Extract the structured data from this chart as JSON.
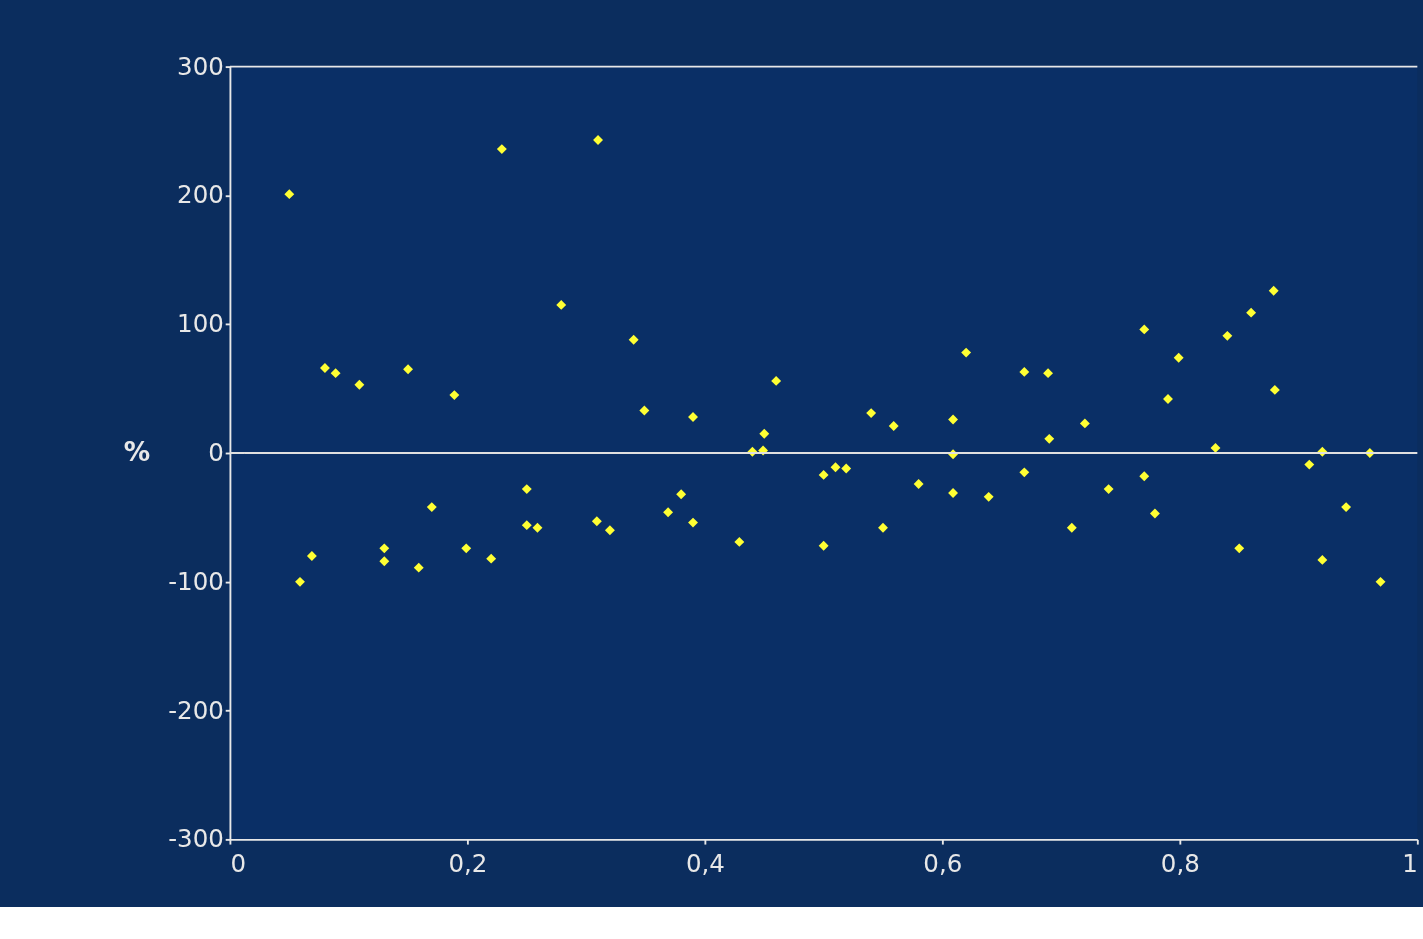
{
  "chart_data": {
    "type": "scatter",
    "ylabel": "%",
    "marker": "diamond",
    "legend": false,
    "grid": false,
    "xlim": [
      0,
      1
    ],
    "ylim": [
      -300,
      300
    ],
    "xticks": [
      0,
      {
        "value": 0.2,
        "label": "0,2"
      },
      {
        "value": 0.4,
        "label": "0,4"
      },
      {
        "value": 0.6,
        "label": "0,6"
      },
      {
        "value": 0.8,
        "label": "0,8"
      },
      1
    ],
    "yticks": [
      -300,
      -200,
      -100,
      0,
      100,
      200,
      300
    ],
    "ref_lines": [
      {
        "axis": "y",
        "value": 0,
        "color": "#e0e0e0"
      }
    ],
    "series": [
      {
        "color": "#ffff33",
        "x": [
          0.05,
          0.059,
          0.069,
          0.08,
          0.089,
          0.109,
          0.13,
          0.13,
          0.15,
          0.159,
          0.17,
          0.189,
          0.199,
          0.22,
          0.229,
          0.25,
          0.25,
          0.259,
          0.279,
          0.309,
          0.31,
          0.32,
          0.34,
          0.349,
          0.369,
          0.38,
          0.39,
          0.39,
          0.429,
          0.44,
          0.449,
          0.45,
          0.46,
          0.5,
          0.5,
          0.51,
          0.519,
          0.54,
          0.55,
          0.559,
          0.58,
          0.609,
          0.609,
          0.609,
          0.62,
          0.639,
          0.669,
          0.669,
          0.689,
          0.69,
          0.709,
          0.72,
          0.74,
          0.77,
          0.77,
          0.779,
          0.79,
          0.799,
          0.83,
          0.84,
          0.85,
          0.86,
          0.879,
          0.88,
          0.909,
          0.92,
          0.92,
          0.94,
          0.96,
          0.969
        ],
        "values": [
          201,
          -100,
          -80,
          66,
          62,
          53,
          -74,
          -84,
          65,
          -89,
          -42,
          45,
          -74,
          -82,
          236,
          -28,
          -56,
          -58,
          115,
          -53,
          243,
          -60,
          88,
          33,
          -46,
          -32,
          28,
          -54,
          -69,
          1,
          2,
          15,
          56,
          -17,
          -72,
          -11,
          -12,
          31,
          -58,
          21,
          -24,
          26,
          -1,
          -31,
          78,
          -34,
          63,
          -15,
          62,
          11,
          -58,
          23,
          -28,
          96,
          -18,
          -47,
          42,
          74,
          4,
          91,
          -74,
          109,
          126,
          49,
          -9,
          1,
          -83,
          -42,
          0,
          -100
        ]
      }
    ]
  }
}
